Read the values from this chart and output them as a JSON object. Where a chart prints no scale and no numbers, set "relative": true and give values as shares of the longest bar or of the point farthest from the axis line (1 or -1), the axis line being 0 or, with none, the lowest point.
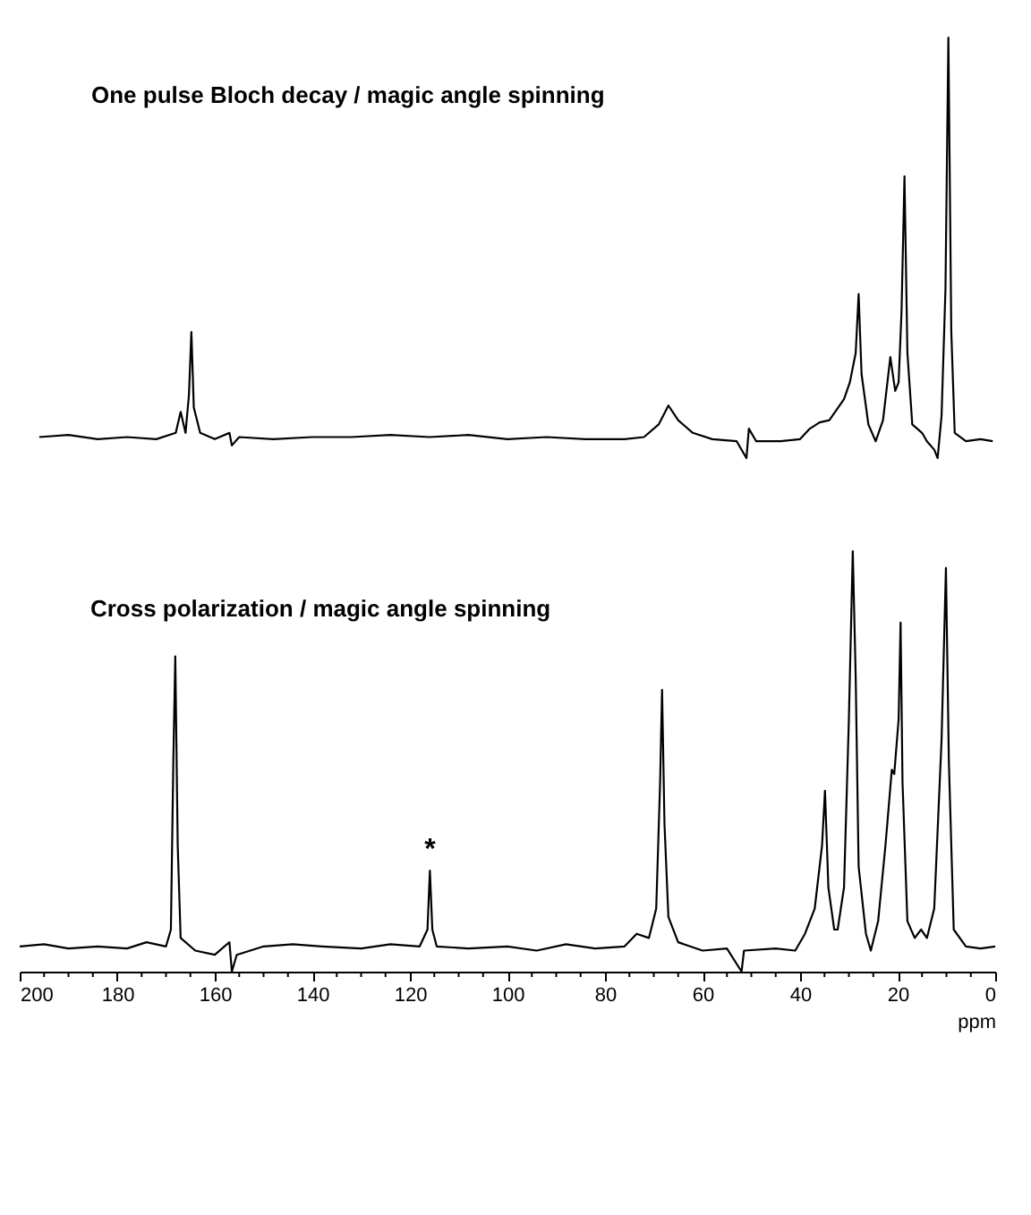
{
  "chart_data": [
    {
      "type": "line",
      "title": "One pulse Bloch decay / magic angle spinning",
      "relative": true,
      "xlim": [
        200,
        0
      ],
      "xticks": [
        200,
        180,
        160,
        140,
        120,
        100,
        80,
        60,
        40,
        20,
        0
      ],
      "tick_labels": false,
      "grid": false,
      "marker": "none",
      "line_style": "solid",
      "x": [
        196,
        190,
        184,
        178,
        172,
        168,
        167,
        166,
        165.3,
        164.8,
        164.3,
        163,
        160,
        157,
        156.5,
        155,
        148,
        140,
        132,
        124,
        116,
        108,
        100,
        92,
        84,
        76,
        72,
        69,
        67,
        65,
        62,
        58,
        53,
        51,
        50.5,
        49,
        44,
        40,
        38,
        36,
        34,
        31,
        29.8,
        28.6,
        28.0,
        27.4,
        26,
        24.5,
        23,
        21.5,
        20.5,
        19.8,
        19.2,
        18.6,
        18,
        17,
        15,
        14,
        12.5,
        11.8,
        11,
        10.2,
        9.6,
        9.0,
        8.3,
        6,
        3,
        0.5
      ],
      "series": [
        {
          "color": "#000000",
          "values": [
            0.05,
            0.055,
            0.045,
            0.05,
            0.045,
            0.06,
            0.11,
            0.06,
            0.15,
            0.3,
            0.12,
            0.06,
            0.045,
            0.06,
            0.03,
            0.05,
            0.045,
            0.05,
            0.05,
            0.055,
            0.05,
            0.055,
            0.045,
            0.05,
            0.045,
            0.045,
            0.05,
            0.08,
            0.125,
            0.09,
            0.06,
            0.045,
            0.04,
            0.0,
            0.07,
            0.04,
            0.04,
            0.045,
            0.07,
            0.085,
            0.09,
            0.14,
            0.18,
            0.25,
            0.39,
            0.2,
            0.08,
            0.04,
            0.09,
            0.24,
            0.16,
            0.18,
            0.35,
            0.67,
            0.25,
            0.08,
            0.06,
            0.04,
            0.02,
            0.0,
            0.1,
            0.4,
            1.0,
            0.3,
            0.06,
            0.04,
            0.045,
            0.04
          ]
        }
      ]
    },
    {
      "type": "line",
      "title": "Cross polarization / magic angle spinning",
      "xlabel": "ppm",
      "relative": true,
      "xlim": [
        200,
        0
      ],
      "tick_labels": "x",
      "grid": false,
      "marker": "none",
      "line_style": "solid",
      "xticks": [
        200,
        {
          "value": 195,
          "label": null
        },
        {
          "value": 190,
          "label": null
        },
        {
          "value": 185,
          "label": null
        },
        180,
        {
          "value": 175,
          "label": null
        },
        {
          "value": 170,
          "label": null
        },
        {
          "value": 165,
          "label": null
        },
        160,
        {
          "value": 155,
          "label": null
        },
        {
          "value": 150,
          "label": null
        },
        {
          "value": 145,
          "label": null
        },
        140,
        {
          "value": 135,
          "label": null
        },
        {
          "value": 130,
          "label": null
        },
        {
          "value": 125,
          "label": null
        },
        120,
        {
          "value": 115,
          "label": null
        },
        {
          "value": 110,
          "label": null
        },
        {
          "value": 105,
          "label": null
        },
        100,
        {
          "value": 95,
          "label": null
        },
        {
          "value": 90,
          "label": null
        },
        {
          "value": 85,
          "label": null
        },
        80,
        {
          "value": 75,
          "label": null
        },
        {
          "value": 70,
          "label": null
        },
        {
          "value": 65,
          "label": null
        },
        60,
        {
          "value": 55,
          "label": null
        },
        {
          "value": 50,
          "label": null
        },
        {
          "value": 45,
          "label": null
        },
        40,
        {
          "value": 35,
          "label": null
        },
        {
          "value": 30,
          "label": null
        },
        {
          "value": 25,
          "label": null
        },
        20,
        {
          "value": 15,
          "label": null
        },
        {
          "value": 10,
          "label": null
        },
        {
          "value": 5,
          "label": null
        },
        0
      ],
      "annotations": [
        {
          "text": "*",
          "x": 115.9,
          "y": 0.24
        }
      ],
      "x": [
        200,
        195,
        190,
        184,
        178,
        174,
        170,
        169,
        168.5,
        168.1,
        167.6,
        167,
        164,
        160,
        157,
        156.5,
        155.5,
        150,
        144,
        138,
        130,
        124,
        118,
        116.4,
        115.9,
        115.4,
        114.5,
        108,
        100,
        94,
        88,
        82,
        76,
        73.5,
        71,
        69.5,
        68.7,
        68.3,
        67.8,
        67,
        65,
        60,
        55,
        52,
        51.5,
        45,
        41,
        39,
        37,
        35.5,
        34.9,
        34.2,
        33,
        32.3,
        31,
        30,
        29.2,
        28.6,
        28,
        26.5,
        25.5,
        24,
        22.5,
        21.2,
        20.7,
        19.8,
        19.4,
        19,
        18,
        16.5,
        15.2,
        14,
        12.5,
        11,
        10.1,
        9.5,
        8.5,
        6,
        3,
        0
      ],
      "series": [
        {
          "color": "#000000",
          "values": [
            0.06,
            0.065,
            0.055,
            0.06,
            0.055,
            0.07,
            0.06,
            0.1,
            0.5,
            0.75,
            0.3,
            0.08,
            0.05,
            0.04,
            0.07,
            0.0,
            0.04,
            0.06,
            0.065,
            0.06,
            0.055,
            0.065,
            0.06,
            0.1,
            0.24,
            0.1,
            0.06,
            0.055,
            0.06,
            0.05,
            0.065,
            0.055,
            0.06,
            0.09,
            0.08,
            0.15,
            0.45,
            0.67,
            0.35,
            0.13,
            0.07,
            0.05,
            0.055,
            0.0,
            0.05,
            0.055,
            0.05,
            0.09,
            0.15,
            0.3,
            0.43,
            0.2,
            0.1,
            0.1,
            0.2,
            0.6,
            1.0,
            0.7,
            0.25,
            0.09,
            0.05,
            0.12,
            0.3,
            0.48,
            0.47,
            0.6,
            0.83,
            0.45,
            0.12,
            0.08,
            0.1,
            0.08,
            0.15,
            0.55,
            0.96,
            0.5,
            0.1,
            0.06,
            0.055,
            0.06
          ]
        }
      ]
    }
  ]
}
